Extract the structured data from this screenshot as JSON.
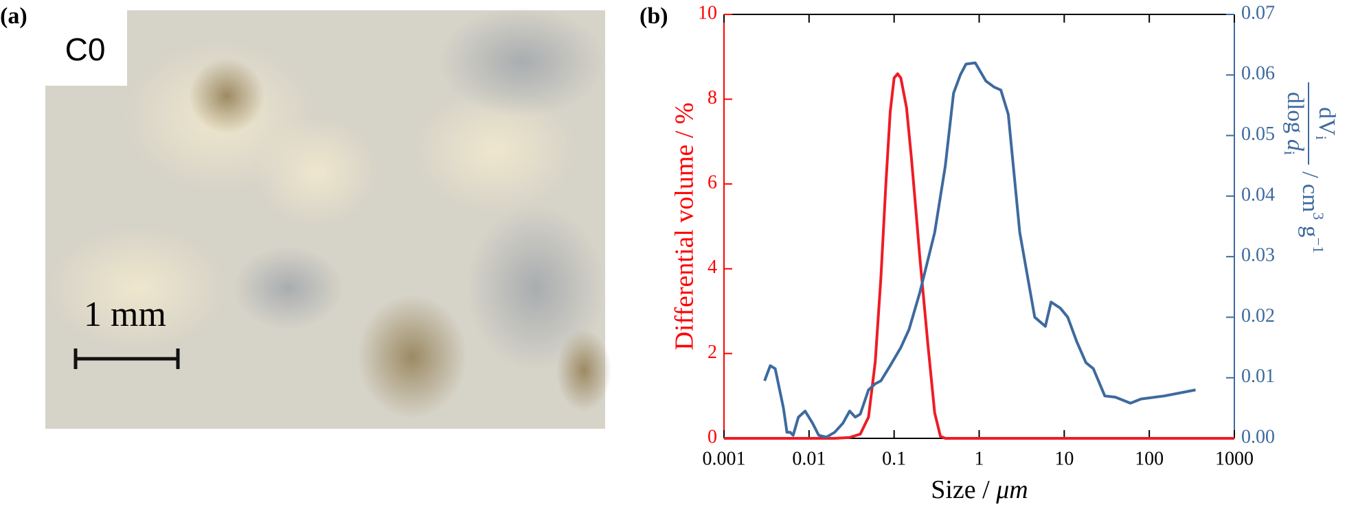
{
  "panel_a": {
    "label": "(a)",
    "sample": "C0",
    "scale_bar": "1 mm"
  },
  "chart_data": {
    "type": "line",
    "panel_label": "(b)",
    "xlabel": {
      "text": "Size / ",
      "unit": "μm"
    },
    "ylabel": "Differential volume / %",
    "y2label": {
      "numerator": [
        "dV",
        "i"
      ],
      "denominator": [
        "dlog ",
        "d",
        "i"
      ],
      "unit": [
        "/ cm",
        "3",
        " g",
        "−1"
      ]
    },
    "xscale": "log",
    "xlim": [
      0.001,
      1000
    ],
    "xticks": [
      0.001,
      0.01,
      0.1,
      1,
      10,
      100,
      1000
    ],
    "ylim": [
      0,
      10
    ],
    "yticks": [
      0,
      2,
      4,
      6,
      8,
      10
    ],
    "ycolor": "#ff0000",
    "y2lim": [
      0,
      0.07
    ],
    "y2ticks": [
      {
        "value": 0,
        "label": "0.00"
      },
      0.01,
      0.02,
      0.03,
      0.04,
      0.05,
      0.06,
      0.07
    ],
    "y2color": "#3d6a9e",
    "series": [
      {
        "name": "Differential volume",
        "color": "#ee1c25",
        "axis": "y",
        "x": [
          0.001,
          0.02,
          0.03,
          0.04,
          0.05,
          0.06,
          0.07,
          0.08,
          0.09,
          0.1,
          0.11,
          0.12,
          0.14,
          0.16,
          0.18,
          0.2,
          0.25,
          0.3,
          0.35,
          0.4,
          1000
        ],
        "values": [
          0,
          0,
          0.02,
          0.1,
          0.5,
          1.8,
          3.8,
          6.0,
          7.7,
          8.5,
          8.6,
          8.5,
          7.8,
          6.6,
          5.4,
          4.3,
          2.2,
          0.6,
          0.05,
          0,
          0
        ]
      },
      {
        "name": "dVi/dlog di",
        "color": "#3d6a9e",
        "axis": "y2",
        "x": [
          0.003,
          0.0035,
          0.004,
          0.005,
          0.0055,
          0.006,
          0.0065,
          0.0075,
          0.009,
          0.011,
          0.013,
          0.016,
          0.02,
          0.025,
          0.03,
          0.035,
          0.04,
          0.05,
          0.06,
          0.07,
          0.09,
          0.12,
          0.15,
          0.2,
          0.3,
          0.4,
          0.5,
          0.6,
          0.7,
          0.9,
          1.2,
          1.5,
          1.8,
          2.2,
          3,
          4.5,
          6,
          7,
          9,
          11,
          14,
          18,
          22,
          30,
          40,
          60,
          80,
          150,
          350
        ],
        "values": [
          0.0095,
          0.012,
          0.0115,
          0.005,
          0.001,
          0.001,
          0.0005,
          0.0035,
          0.0045,
          0.0025,
          0.0005,
          0.0002,
          0.001,
          0.0025,
          0.0045,
          0.0035,
          0.004,
          0.008,
          0.009,
          0.0095,
          0.012,
          0.015,
          0.018,
          0.024,
          0.034,
          0.045,
          0.057,
          0.06,
          0.0618,
          0.062,
          0.059,
          0.058,
          0.0575,
          0.0535,
          0.034,
          0.02,
          0.0185,
          0.0225,
          0.0215,
          0.02,
          0.016,
          0.0125,
          0.0115,
          0.007,
          0.0068,
          0.0058,
          0.0065,
          0.007,
          0.008
        ]
      }
    ]
  }
}
